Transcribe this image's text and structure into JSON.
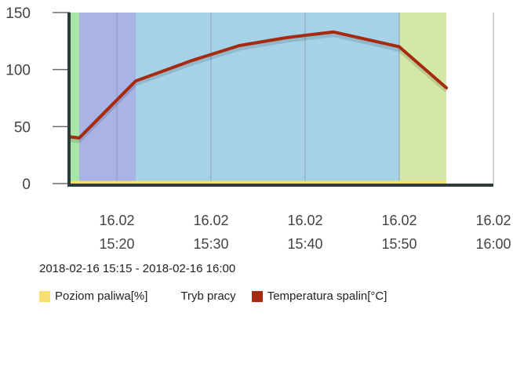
{
  "chart_data": {
    "type": "line",
    "x_range": [
      "15:15",
      "16:00"
    ],
    "ylim": [
      0,
      150
    ],
    "y_ticks": [
      0,
      50,
      100,
      150
    ],
    "x_ticks": [
      {
        "time": "15:20",
        "date": "16.02",
        "label": "15:20"
      },
      {
        "time": "15:30",
        "date": "16.02",
        "label": "15:30"
      },
      {
        "time": "15:40",
        "date": "16.02",
        "label": "15:40"
      },
      {
        "time": "15:50",
        "date": "16.02",
        "label": "15:50"
      },
      {
        "time": "16:00",
        "date": "16.02",
        "label": "16:00"
      }
    ],
    "series": [
      {
        "name": "Temperatura spalin[°C]",
        "color": "#a52a10",
        "points": [
          {
            "t": "15:15",
            "y": 41
          },
          {
            "t": "15:16",
            "y": 40
          },
          {
            "t": "15:22",
            "y": 90
          },
          {
            "t": "15:28",
            "y": 108
          },
          {
            "t": "15:33",
            "y": 121
          },
          {
            "t": "15:38",
            "y": 128
          },
          {
            "t": "15:43",
            "y": 133
          },
          {
            "t": "15:50",
            "y": 120
          },
          {
            "t": "15:55",
            "y": 84
          }
        ]
      },
      {
        "name": "Poziom paliwa[%]",
        "color": "#f7df6e",
        "points": [
          {
            "t": "15:15",
            "y": 1
          },
          {
            "t": "15:55",
            "y": 1
          }
        ]
      }
    ],
    "operating_mode_bands": [
      {
        "from": "15:15",
        "to": "15:16",
        "color": "#a8e6a8"
      },
      {
        "from": "15:16",
        "to": "15:22",
        "color": "#a9b3e6"
      },
      {
        "from": "15:22",
        "to": "15:50",
        "color": "#a6d2e8"
      },
      {
        "from": "15:50",
        "to": "15:55",
        "color": "#d3e8a6"
      }
    ],
    "grid": true
  },
  "range_label": "2018-02-16 15:15 - 2018-02-16 16:00",
  "legend": {
    "fuel": {
      "label": "Poziom paliwa[%]",
      "color": "#f7df6e"
    },
    "mode": {
      "label": "Tryb pracy"
    },
    "temp": {
      "label": "Temperatura spalin[°C]",
      "color": "#a52a10"
    }
  }
}
